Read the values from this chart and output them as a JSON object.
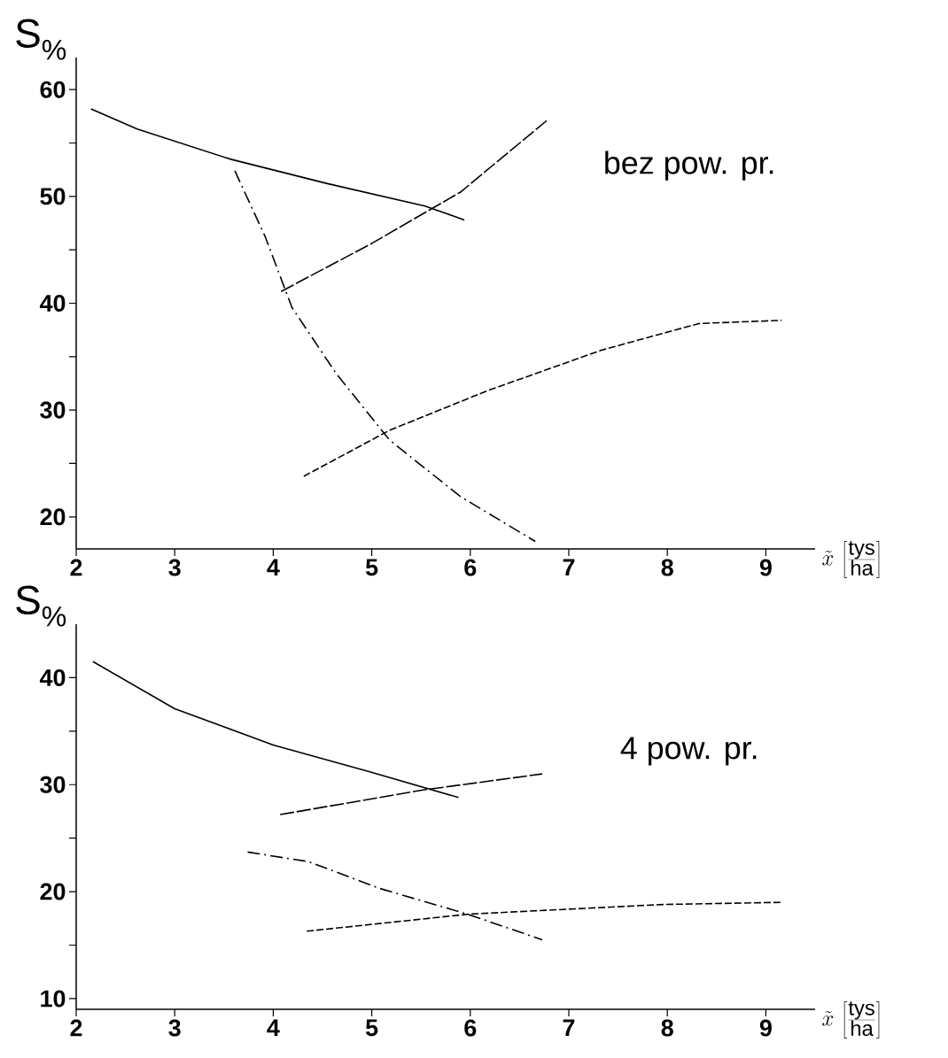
{
  "chart_data": [
    {
      "type": "line",
      "ylabel": "S$_{%}$",
      "xlabel": "\\tilde{x}\\,\\left[\\frac{\\mathrm{tys}}{\\mathrm{ha}}\\right]",
      "annotations": [
        "bez pow. pr."
      ],
      "xlim": [
        2,
        9.5
      ],
      "xticks": [
        2,
        3,
        4,
        5,
        6,
        7,
        8,
        9
      ],
      "ylim": [
        17,
        63
      ],
      "yticks": [
        20,
        {
          "value": 25,
          "label": null
        },
        30,
        {
          "value": 35,
          "label": null
        },
        40,
        {
          "value": 45,
          "label": null
        },
        50,
        {
          "value": 55,
          "label": null
        },
        60
      ],
      "series": [
        {
          "color": "#000000",
          "line_style": "solid",
          "x": [
            2.15,
            2.62,
            3.56,
            4.55,
            5.54,
            5.94
          ],
          "values": [
            58.2,
            56.3,
            53.5,
            51.2,
            49.1,
            47.8
          ]
        },
        {
          "color": "#000000",
          "line_style": "long dashed",
          "x": [
            4.08,
            5.0,
            5.9,
            6.79
          ],
          "values": [
            41.1,
            45.6,
            50.4,
            57.2
          ]
        },
        {
          "color": "#000000",
          "line_style": "dashdot",
          "x": [
            3.61,
            3.92,
            4.19,
            4.64,
            5.18,
            5.9,
            6.66
          ],
          "values": [
            52.4,
            46.2,
            39.6,
            33.4,
            27.2,
            21.9,
            17.7
          ]
        },
        {
          "color": "#000000",
          "line_style": "dashed",
          "x": [
            4.31,
            5.18,
            6.17,
            7.33,
            8.32,
            9.16
          ],
          "values": [
            23.8,
            28.1,
            31.8,
            35.6,
            38.1,
            38.4
          ]
        }
      ]
    },
    {
      "type": "line",
      "ylabel": "S$_{%}$",
      "xlabel": "\\tilde{x}\\,\\left[\\frac{\\mathrm{tys}}{\\mathrm{ha}}\\right]",
      "annotations": [
        "4 pow. pr."
      ],
      "xlim": [
        2,
        9.5
      ],
      "xticks": [
        2,
        3,
        4,
        5,
        6,
        7,
        8,
        9
      ],
      "ylim": [
        9,
        45
      ],
      "yticks": [
        10,
        {
          "value": 15,
          "label": null
        },
        20,
        {
          "value": 25,
          "label": null
        },
        30,
        {
          "value": 35,
          "label": null
        },
        40
      ],
      "series": [
        {
          "color": "#000000",
          "line_style": "solid",
          "x": [
            2.17,
            3.0,
            4.0,
            4.98,
            5.88
          ],
          "values": [
            41.5,
            37.1,
            33.7,
            31.2,
            28.8
          ]
        },
        {
          "color": "#000000",
          "line_style": "long dashed",
          "x": [
            4.07,
            5.52,
            6.73
          ],
          "values": [
            27.2,
            29.5,
            31.0
          ]
        },
        {
          "color": "#000000",
          "line_style": "dashdot",
          "x": [
            3.74,
            4.36,
            5.08,
            5.97,
            6.73
          ],
          "values": [
            23.7,
            22.8,
            20.3,
            17.9,
            15.5
          ]
        },
        {
          "color": "#000000",
          "line_style": "dashed",
          "x": [
            4.34,
            5.99,
            7.96,
            9.17
          ],
          "values": [
            16.3,
            17.9,
            18.8,
            19.0
          ]
        }
      ]
    }
  ]
}
